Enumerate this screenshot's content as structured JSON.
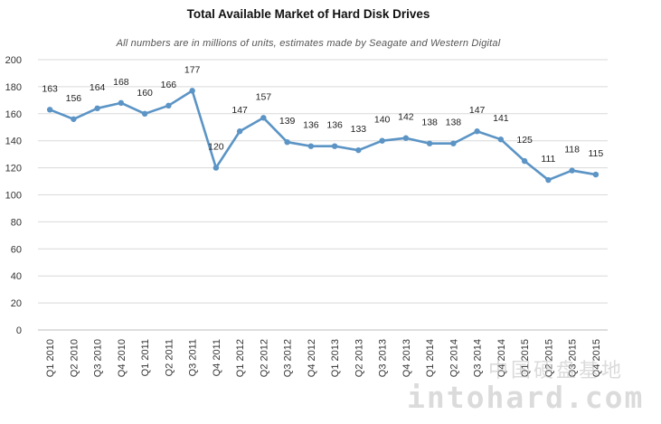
{
  "chart_data": {
    "type": "line",
    "title": "Total Available Market of Hard Disk Drives",
    "subtitle": "All numbers are in millions of units, estimates made by Seagate and Western Digital",
    "xlabel": "",
    "ylabel": "",
    "ylim": [
      0,
      200
    ],
    "yticks": [
      0,
      20,
      40,
      60,
      80,
      100,
      120,
      140,
      160,
      180,
      200
    ],
    "grid": true,
    "legend": "none",
    "line_color": "#5b94c5",
    "categories": [
      "Q1 2010",
      "Q2 2010",
      "Q3 2010",
      "Q4 2010",
      "Q1 2011",
      "Q2 2011",
      "Q3 2011",
      "Q4 2011",
      "Q1 2012",
      "Q2 2012",
      "Q3 2012",
      "Q4 2012",
      "Q1 2013",
      "Q2 2013",
      "Q3 2013",
      "Q4 2013",
      "Q1 2014",
      "Q2 2014",
      "Q3 2014",
      "Q4 2014",
      "Q1 2015",
      "Q2 2015",
      "Q3 2015",
      "Q4 2015"
    ],
    "values": [
      163,
      156,
      164,
      168,
      160,
      166,
      177,
      120,
      147,
      157,
      139,
      136,
      136,
      133,
      140,
      142,
      138,
      138,
      147,
      141,
      125,
      111,
      118,
      115
    ]
  },
  "watermark": {
    "text": "intohard.com",
    "chinese": "中国硬盘基地"
  }
}
